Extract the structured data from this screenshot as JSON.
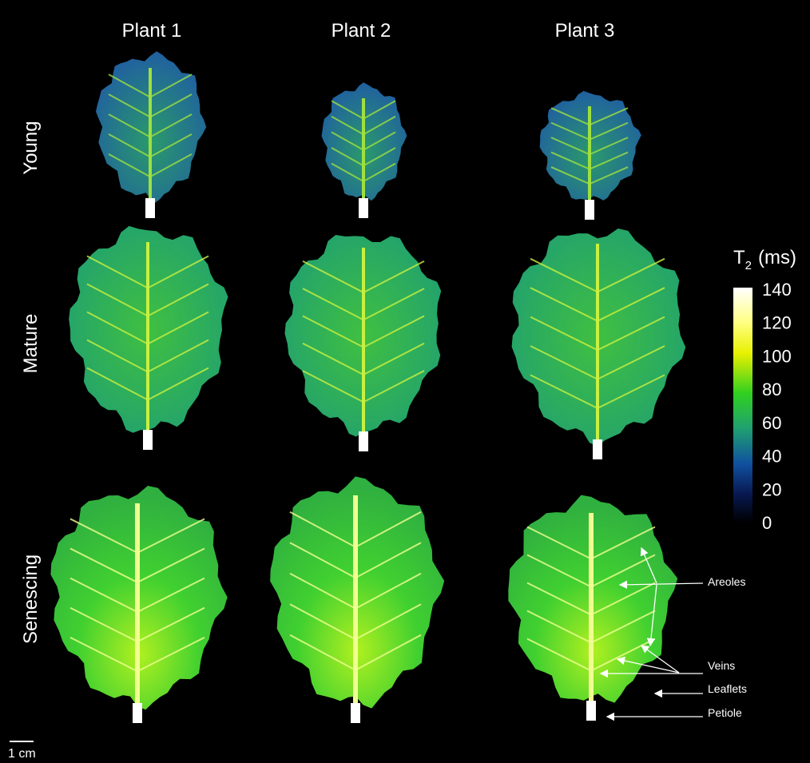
{
  "columns": [
    "Plant 1",
    "Plant 2",
    "Plant 3"
  ],
  "rows": [
    "Young",
    "Mature",
    "Senescing"
  ],
  "colorbar": {
    "title": "T",
    "title_subscript": "2",
    "title_unit": "(ms)",
    "ticks": [
      140,
      120,
      100,
      80,
      60,
      40,
      20,
      0
    ]
  },
  "annotations": [
    "Areoles",
    "Veins",
    "Leaflets",
    "Petiole"
  ],
  "scale_bar": "1 cm"
}
